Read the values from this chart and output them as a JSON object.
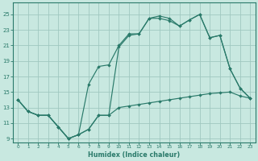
{
  "background_color": "#c8e8e0",
  "grid_color": "#a0c8c0",
  "line_color": "#2a7a6a",
  "xlim": [
    -0.5,
    23.5
  ],
  "ylim": [
    8.5,
    26.5
  ],
  "xlabel": "Humidex (Indice chaleur)",
  "xticks": [
    0,
    1,
    2,
    3,
    4,
    5,
    6,
    7,
    8,
    9,
    10,
    11,
    12,
    13,
    14,
    15,
    16,
    17,
    18,
    19,
    20,
    21,
    22,
    23
  ],
  "yticks": [
    9,
    11,
    13,
    15,
    17,
    19,
    21,
    23,
    25
  ],
  "series": [
    {
      "x": [
        0,
        1,
        2,
        3,
        4,
        5,
        6,
        7,
        8,
        9,
        10,
        11,
        12,
        13,
        14,
        15,
        16,
        17,
        18,
        19,
        20,
        21,
        22,
        23
      ],
      "y": [
        14.0,
        12.5,
        12.0,
        12.0,
        10.5,
        9.0,
        9.5,
        10.2,
        12.0,
        12.0,
        13.0,
        13.2,
        13.4,
        13.6,
        13.8,
        14.0,
        14.2,
        14.4,
        14.6,
        14.8,
        14.9,
        15.0,
        14.5,
        14.2
      ]
    },
    {
      "x": [
        0,
        1,
        2,
        3,
        4,
        5,
        6,
        7,
        8,
        9,
        10,
        11,
        12,
        13,
        14,
        15,
        16,
        17,
        18,
        19,
        20,
        21,
        22,
        23
      ],
      "y": [
        14.0,
        12.5,
        12.0,
        12.0,
        10.5,
        9.0,
        9.5,
        16.0,
        18.3,
        18.5,
        21.0,
        22.5,
        22.5,
        24.5,
        24.5,
        24.2,
        23.5,
        24.3,
        25.0,
        22.0,
        22.3,
        18.0,
        15.5,
        14.2
      ]
    },
    {
      "x": [
        0,
        1,
        2,
        3,
        4,
        5,
        6,
        7,
        8,
        9,
        10,
        11,
        12,
        13,
        14,
        15,
        16,
        17,
        18,
        19,
        20,
        21,
        22,
        23
      ],
      "y": [
        14.0,
        12.5,
        12.0,
        12.0,
        10.5,
        9.0,
        9.5,
        10.2,
        12.0,
        12.0,
        20.8,
        22.3,
        22.5,
        24.5,
        24.8,
        24.5,
        23.5,
        24.3,
        25.0,
        22.0,
        22.3,
        18.0,
        15.5,
        14.2
      ]
    }
  ]
}
